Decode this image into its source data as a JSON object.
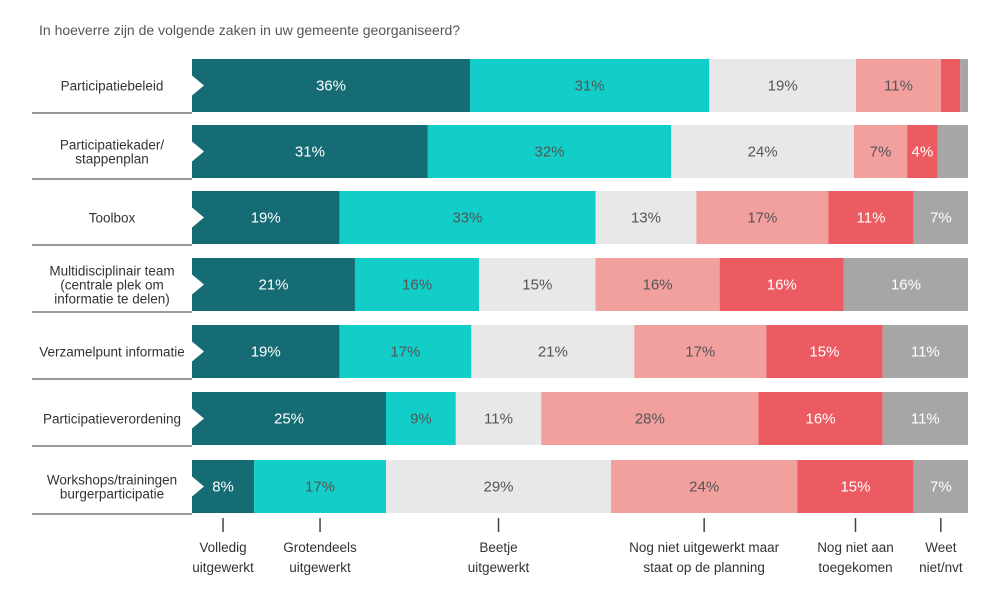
{
  "chart_data": {
    "type": "bar",
    "orientation": "horizontal",
    "stacked": true,
    "title": "In hoeverre zijn de volgende zaken in uw gemeente georganiseerd?",
    "categories": [
      [
        "Participatiebeleid"
      ],
      [
        "Participatiekader/",
        "stappenplan"
      ],
      [
        "Toolbox"
      ],
      [
        "Multidisciplinair team",
        "(centrale plek om",
        "informatie te delen)"
      ],
      [
        "Verzamelpunt informatie"
      ],
      [
        "Participatieverordening"
      ],
      [
        "Workshops/trainingen",
        "burgerparticipatie"
      ]
    ],
    "series": [
      {
        "name": "Volledig uitgewerkt",
        "legend": [
          "Volledig",
          "uitgewerkt"
        ],
        "color": "#156c74",
        "text_color": "#ffffff",
        "values": [
          36,
          31,
          19,
          21,
          19,
          25,
          8
        ],
        "labels": [
          "36%",
          "31%",
          "19%",
          "21%",
          "19%",
          "25%",
          "8%"
        ]
      },
      {
        "name": "Grotendeels uitgewerkt",
        "legend": [
          "Grotendeels",
          "uitgewerkt"
        ],
        "color": "#13cdc8",
        "text_color": "#555555",
        "values": [
          31,
          32,
          33,
          16,
          17,
          9,
          17
        ],
        "labels": [
          "31%",
          "32%",
          "33%",
          "16%",
          "17%",
          "9%",
          "17%"
        ]
      },
      {
        "name": "Beetje uitgewerkt",
        "legend": [
          "Beetje",
          "uitgewerkt"
        ],
        "color": "#e8e8e8",
        "text_color": "#555555",
        "values": [
          19,
          24,
          13,
          15,
          21,
          11,
          29
        ],
        "labels": [
          "19%",
          "24%",
          "13%",
          "15%",
          "21%",
          "11%",
          "29%"
        ]
      },
      {
        "name": "Nog niet uitgewerkt maar staat op de planning",
        "legend": [
          "Nog niet uitgewerkt maar",
          "staat op de planning"
        ],
        "color": "#f2a09e",
        "text_color": "#555555",
        "values": [
          11,
          7,
          17,
          16,
          17,
          28,
          24
        ],
        "labels": [
          "11%",
          "7%",
          "17%",
          "16%",
          "17%",
          "28%",
          "24%"
        ]
      },
      {
        "name": "Nog niet aan toegekomen",
        "legend": [
          "Nog niet aan",
          "toegekomen"
        ],
        "color": "#ec5b62",
        "text_color": "#ffffff",
        "values": [
          2.5,
          4,
          11,
          16,
          15,
          16,
          15
        ],
        "labels": [
          "",
          "4%",
          "11%",
          "16%",
          "15%",
          "16%",
          "15%"
        ]
      },
      {
        "name": "Weet niet/nvt",
        "legend": [
          "Weet",
          "niet/nvt"
        ],
        "color": "#a6a6a6",
        "text_color": "#ffffff",
        "values": [
          1,
          4,
          7,
          16,
          11,
          11,
          7
        ],
        "labels": [
          "",
          "",
          "7%",
          "16%",
          "11%",
          "11%",
          "7%"
        ]
      }
    ],
    "xlim": [
      0,
      100
    ],
    "grid": false,
    "legend_placement": "bottom"
  }
}
